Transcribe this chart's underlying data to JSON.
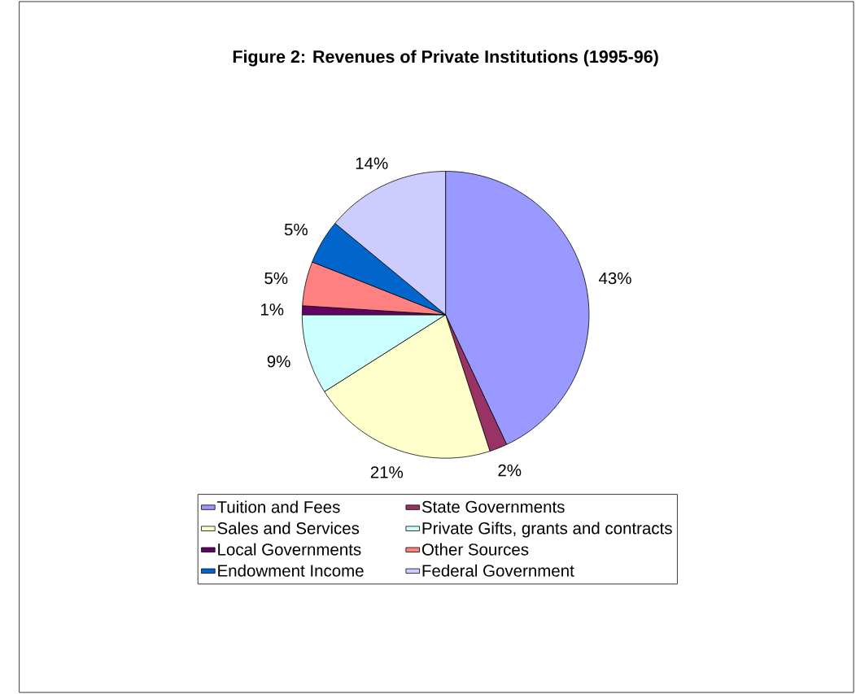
{
  "chart_data": {
    "type": "pie",
    "title": "Figure 2: Revenues of Private Institutions (1995-96)",
    "categories": [
      "Tuition and Fees",
      "State Governments",
      "Sales and Services",
      "Private Gifts, grants and contracts",
      "Local Governments",
      "Other Sources",
      "Endowment Income",
      "Federal Government"
    ],
    "values": [
      43,
      2,
      21,
      9,
      1,
      5,
      5,
      14
    ],
    "value_labels": [
      "43%",
      "2%",
      "21%",
      "9%",
      "1%",
      "5%",
      "5%",
      "14%"
    ],
    "colors": [
      "#9999ff",
      "#993366",
      "#ffffcc",
      "#ccffff",
      "#660066",
      "#ff8080",
      "#0066cc",
      "#ccccff"
    ],
    "legend": "bottom"
  }
}
